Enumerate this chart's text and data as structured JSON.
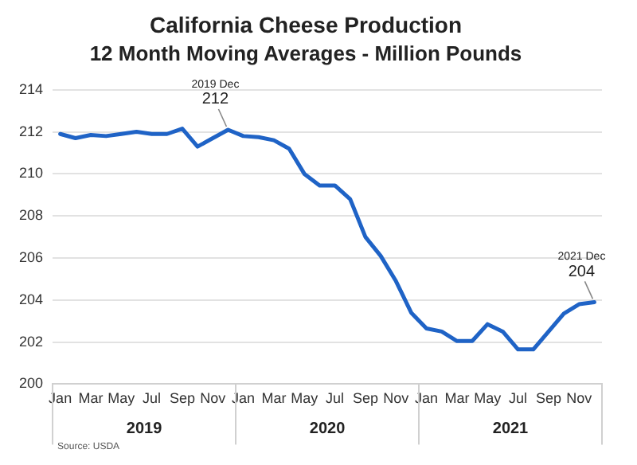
{
  "chart_data": {
    "type": "line",
    "title": "California Cheese Production",
    "subtitle": "12 Month Moving Averages - Million Pounds",
    "categories": [
      "Jan",
      null,
      "Mar",
      null,
      "May",
      null,
      "Jul",
      null,
      "Sep",
      null,
      "Nov",
      null,
      "Jan",
      null,
      "Mar",
      null,
      "May",
      null,
      "Jul",
      null,
      "Sep",
      null,
      "Nov",
      null,
      "Jan",
      null,
      "Mar",
      null,
      "May",
      null,
      "Jul",
      null,
      "Sep",
      null,
      "Nov",
      null
    ],
    "series": [
      {
        "color": "#1f63c6",
        "values": [
          211.9,
          211.7,
          211.85,
          211.8,
          211.9,
          212.0,
          211.9,
          211.9,
          212.15,
          211.3,
          211.7,
          212.1,
          211.8,
          211.75,
          211.6,
          211.2,
          210.0,
          209.45,
          209.45,
          208.8,
          207.0,
          206.1,
          204.9,
          203.4,
          202.65,
          202.5,
          202.05,
          202.05,
          202.85,
          202.5,
          201.65,
          201.65,
          202.5,
          203.35,
          203.8,
          203.9
        ],
        "value_labels": [
          null,
          null,
          null,
          null,
          null,
          null,
          null,
          null,
          null,
          null,
          null,
          "212",
          null,
          null,
          null,
          null,
          null,
          null,
          null,
          null,
          null,
          null,
          null,
          null,
          null,
          null,
          null,
          null,
          null,
          null,
          null,
          null,
          null,
          null,
          null,
          "204"
        ]
      }
    ],
    "ylim": [
      200,
      214
    ],
    "yticks": [
      200,
      202,
      204,
      206,
      208,
      210,
      212,
      214
    ],
    "grid": "y",
    "legend": false,
    "marker": "none",
    "line_style": "solid",
    "annotations": [
      "2019 Dec",
      "2021 Dec",
      "Source: USDA",
      "2019",
      "2020",
      "2021"
    ]
  }
}
